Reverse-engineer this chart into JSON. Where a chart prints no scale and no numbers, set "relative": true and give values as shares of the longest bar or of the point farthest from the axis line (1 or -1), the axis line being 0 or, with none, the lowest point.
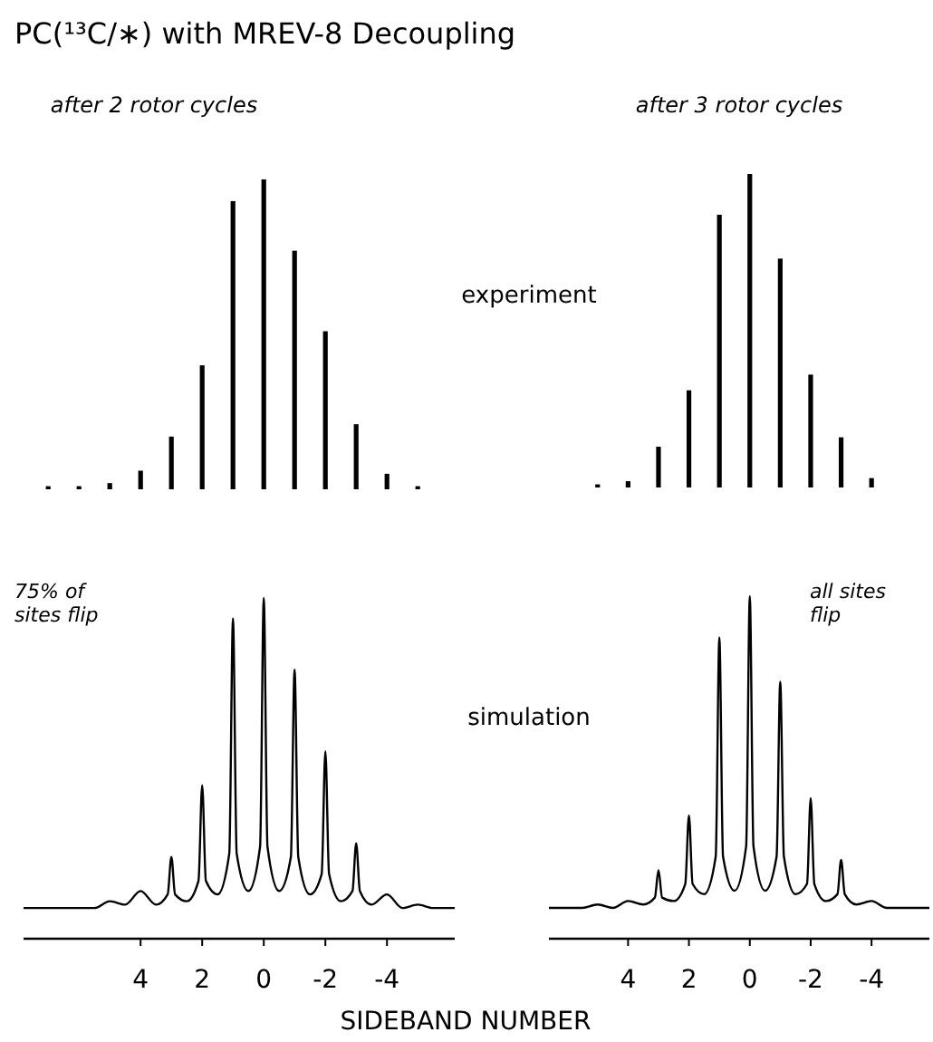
{
  "chart_data": [
    {
      "type": "bar",
      "title": "PC(¹³C/∗) with MREV-8 Decoupling",
      "subtitle": "after 2 rotor cycles",
      "relative": true,
      "color": "#000000",
      "tick_labels": false,
      "annotations": [
        "experiment"
      ],
      "x": [
        7,
        6,
        5,
        4,
        3,
        2,
        1,
        0,
        -1,
        -2,
        -3,
        -4,
        -5
      ],
      "values": [
        0.01,
        0.01,
        0.02,
        0.06,
        0.17,
        0.4,
        0.93,
        1,
        0.77,
        0.51,
        0.21,
        0.05,
        0.01
      ]
    },
    {
      "type": "bar",
      "subtitle": "after 3 rotor cycles",
      "relative": true,
      "color": "#000000",
      "tick_labels": false,
      "x": [
        5,
        4,
        3,
        2,
        1,
        0,
        -1,
        -2,
        -3,
        -4
      ],
      "values": [
        0.01,
        0.02,
        0.13,
        0.31,
        0.87,
        1,
        0.73,
        0.36,
        0.16,
        0.03
      ]
    },
    {
      "type": "line",
      "relative": true,
      "color": "#000000",
      "tick_labels": "x",
      "xlim": [
        7.8,
        -6.2
      ],
      "xticks": [
        4,
        2,
        0,
        -2,
        -4
      ],
      "xlabel": "SIDEBAND NUMBER",
      "annotations": [
        "simulation",
        "75% of sites flip"
      ],
      "x": [
        7.8,
        6.5,
        5.5,
        5,
        4.5,
        4,
        3.5,
        3.12,
        3,
        2.88,
        2.5,
        2.12,
        2,
        1.88,
        1.5,
        1.12,
        1,
        0.88,
        0.5,
        0.12,
        0,
        -0.12,
        -0.5,
        -0.88,
        -1,
        -1.12,
        -1.5,
        -1.88,
        -2,
        -2.12,
        -2.5,
        -2.88,
        -3,
        -3.12,
        -3.5,
        -4,
        -4.5,
        -5,
        -5.5,
        -6.2
      ],
      "values": [
        0.09,
        0.09,
        0.09,
        0.11,
        0.1,
        0.14,
        0.1,
        0.13,
        0.24,
        0.13,
        0.11,
        0.17,
        0.45,
        0.17,
        0.13,
        0.25,
        0.94,
        0.25,
        0.14,
        0.27,
        1,
        0.27,
        0.14,
        0.24,
        0.79,
        0.24,
        0.13,
        0.19,
        0.55,
        0.19,
        0.11,
        0.14,
        0.28,
        0.14,
        0.1,
        0.13,
        0.09,
        0.1,
        0.09,
        0.09
      ]
    },
    {
      "type": "line",
      "relative": true,
      "color": "#000000",
      "tick_labels": "x",
      "xlim": [
        6.6,
        -5.9
      ],
      "xticks": [
        4,
        2,
        0,
        -2,
        -4
      ],
      "annotations": [
        "all sites flip"
      ],
      "x": [
        6.6,
        5.5,
        5,
        4.5,
        4,
        3.5,
        3.12,
        3,
        2.88,
        2.5,
        2.12,
        2,
        1.88,
        1.5,
        1.12,
        1,
        0.88,
        0.5,
        0.12,
        0,
        -0.12,
        -0.5,
        -0.88,
        -1,
        -1.12,
        -1.5,
        -1.88,
        -2,
        -2.12,
        -2.5,
        -2.88,
        -3,
        -3.12,
        -3.5,
        -4,
        -4.5,
        -5.9
      ],
      "values": [
        0.09,
        0.09,
        0.1,
        0.09,
        0.11,
        0.1,
        0.12,
        0.2,
        0.12,
        0.11,
        0.16,
        0.36,
        0.16,
        0.13,
        0.24,
        0.88,
        0.24,
        0.14,
        0.27,
        1,
        0.27,
        0.14,
        0.24,
        0.75,
        0.24,
        0.13,
        0.16,
        0.41,
        0.16,
        0.11,
        0.13,
        0.23,
        0.13,
        0.1,
        0.11,
        0.09,
        0.09
      ]
    }
  ]
}
